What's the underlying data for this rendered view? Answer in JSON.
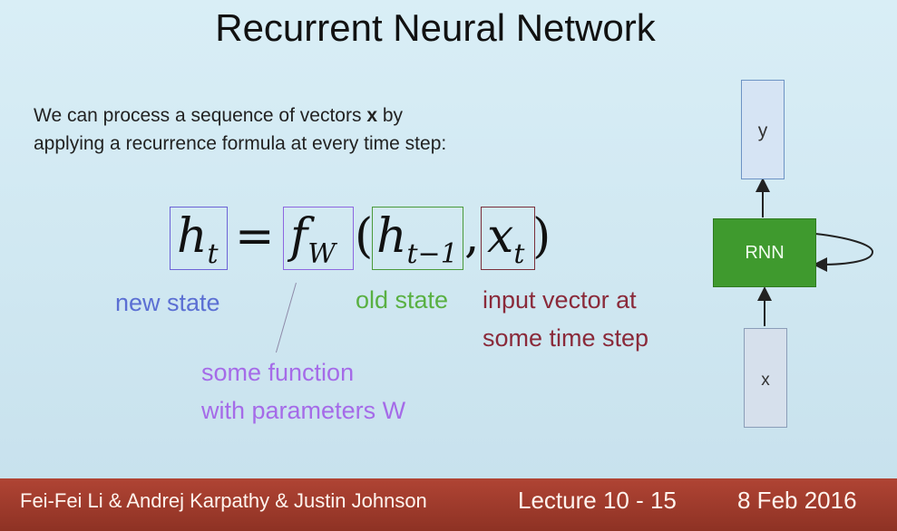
{
  "slide": {
    "title": "Recurrent Neural Network",
    "intro": {
      "line1_prefix": "We can process a sequence of vectors ",
      "line1_bold": "x",
      "line1_suffix": " by",
      "line2": "applying a recurrence formula at every time step:"
    },
    "formula": {
      "h": "h",
      "h_sub": "t",
      "equals": "=",
      "f": "f",
      "f_sub": "W",
      "open_paren": "(",
      "h_prev": "h",
      "h_prev_sub": "t−1",
      "comma": ",",
      "x": "x",
      "x_sub": "t",
      "close_paren": ")"
    },
    "labels": {
      "new_state": "new state",
      "old_state": "old state",
      "input_line1": "input vector at",
      "input_line2": "some time step",
      "function_line1": "some function",
      "function_line2": "with parameters W"
    },
    "colors": {
      "new_state": "#5b6fd3",
      "old_state": "#59b042",
      "input": "#8a2a3a",
      "function": "#a56be8",
      "rnn_box": "#3f9a2e"
    }
  },
  "diagram": {
    "output": "y",
    "cell": "RNN",
    "input": "x"
  },
  "footer": {
    "authors": "Fei-Fei Li & Andrej Karpathy & Justin Johnson",
    "lecture": "Lecture 10 - 15",
    "date": "8 Feb 2016"
  }
}
